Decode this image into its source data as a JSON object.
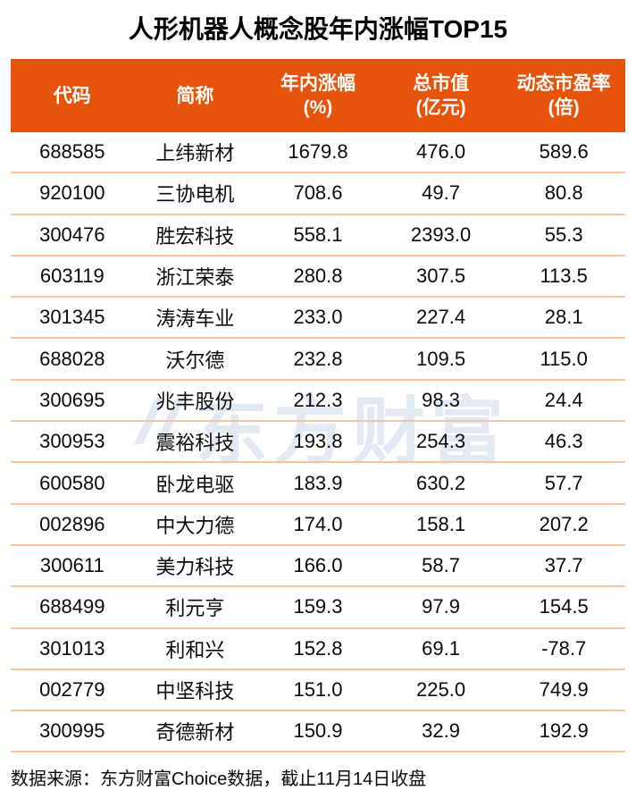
{
  "title": "人形机器人概念股年内涨幅TOP15",
  "watermark": {
    "logo": "eastmoney-logo",
    "text": "东方财富"
  },
  "footer": {
    "source_note": "数据来源：东方财富Choice数据，截止11月14日收盘"
  },
  "colors": {
    "header_bg": "#E5540A",
    "header_text": "#FFFFFF",
    "row_divider": "#F8C49E",
    "watermark": "#E2E9F3",
    "body_text": "#0A0A0A"
  },
  "chart_data": {
    "type": "table",
    "title": "人形机器人概念股年内涨幅TOP15",
    "columns": [
      {
        "label": "代码",
        "unit": ""
      },
      {
        "label": "简称",
        "unit": ""
      },
      {
        "label": "年内涨幅",
        "unit": "(%)"
      },
      {
        "label": "总市值",
        "unit": "(亿元)"
      },
      {
        "label": "动态市盈率",
        "unit": "(倍)"
      }
    ],
    "rows": [
      [
        "688585",
        "上纬新材",
        "1679.8",
        "476.0",
        "589.6"
      ],
      [
        "920100",
        "三协电机",
        "708.6",
        "49.7",
        "80.8"
      ],
      [
        "300476",
        "胜宏科技",
        "558.1",
        "2393.0",
        "55.3"
      ],
      [
        "603119",
        "浙江荣泰",
        "280.8",
        "307.5",
        "113.5"
      ],
      [
        "301345",
        "涛涛车业",
        "233.0",
        "227.4",
        "28.1"
      ],
      [
        "688028",
        "沃尔德",
        "232.8",
        "109.5",
        "115.0"
      ],
      [
        "300695",
        "兆丰股份",
        "212.3",
        "98.3",
        "24.4"
      ],
      [
        "300953",
        "震裕科技",
        "193.8",
        "254.3",
        "46.3"
      ],
      [
        "600580",
        "卧龙电驱",
        "183.9",
        "630.2",
        "57.7"
      ],
      [
        "002896",
        "中大力德",
        "174.0",
        "158.1",
        "207.2"
      ],
      [
        "300611",
        "美力科技",
        "166.0",
        "58.7",
        "37.7"
      ],
      [
        "688499",
        "利元亨",
        "159.3",
        "97.9",
        "154.5"
      ],
      [
        "301013",
        "利和兴",
        "152.8",
        "69.1",
        "-78.7"
      ],
      [
        "002779",
        "中坚科技",
        "151.0",
        "225.0",
        "749.9"
      ],
      [
        "300995",
        "奇德新材",
        "150.9",
        "32.9",
        "192.9"
      ]
    ]
  }
}
